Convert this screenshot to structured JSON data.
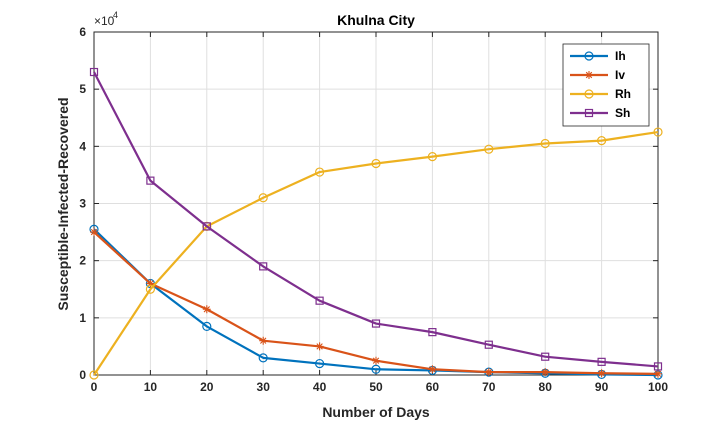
{
  "chart_data": {
    "type": "line",
    "title": "Khulna City",
    "xlabel": "Number of Days",
    "ylabel": "Susceptible-Infected-Recovered",
    "y_multiplier_label": "×10",
    "y_multiplier_exponent": "4",
    "x": [
      0,
      10,
      20,
      30,
      40,
      50,
      60,
      70,
      80,
      90,
      100
    ],
    "xlim": [
      0,
      100
    ],
    "ylim": [
      0,
      6
    ],
    "x_ticks": [
      0,
      10,
      20,
      30,
      40,
      50,
      60,
      70,
      80,
      90,
      100
    ],
    "y_ticks": [
      0,
      1,
      2,
      3,
      4,
      5,
      6
    ],
    "grid": true,
    "legend_position": "top-right",
    "series": [
      {
        "name": "Ih",
        "color": "#0072BD",
        "marker": "circle",
        "values": [
          2.55,
          1.6,
          0.85,
          0.3,
          0.2,
          0.1,
          0.08,
          0.05,
          0.03,
          0.01,
          0.0
        ]
      },
      {
        "name": "Iv",
        "color": "#D95319",
        "marker": "asterisk",
        "values": [
          2.5,
          1.6,
          1.15,
          0.6,
          0.5,
          0.25,
          0.1,
          0.05,
          0.05,
          0.03,
          0.02
        ]
      },
      {
        "name": "Rh",
        "color": "#EDB120",
        "marker": "circle",
        "values": [
          0.0,
          1.5,
          2.6,
          3.1,
          3.55,
          3.7,
          3.82,
          3.95,
          4.05,
          4.1,
          4.25
        ]
      },
      {
        "name": "Sh",
        "color": "#7E2F8E",
        "marker": "square",
        "values": [
          5.3,
          3.4,
          2.6,
          1.9,
          1.3,
          0.9,
          0.75,
          0.53,
          0.32,
          0.23,
          0.15
        ]
      }
    ]
  }
}
